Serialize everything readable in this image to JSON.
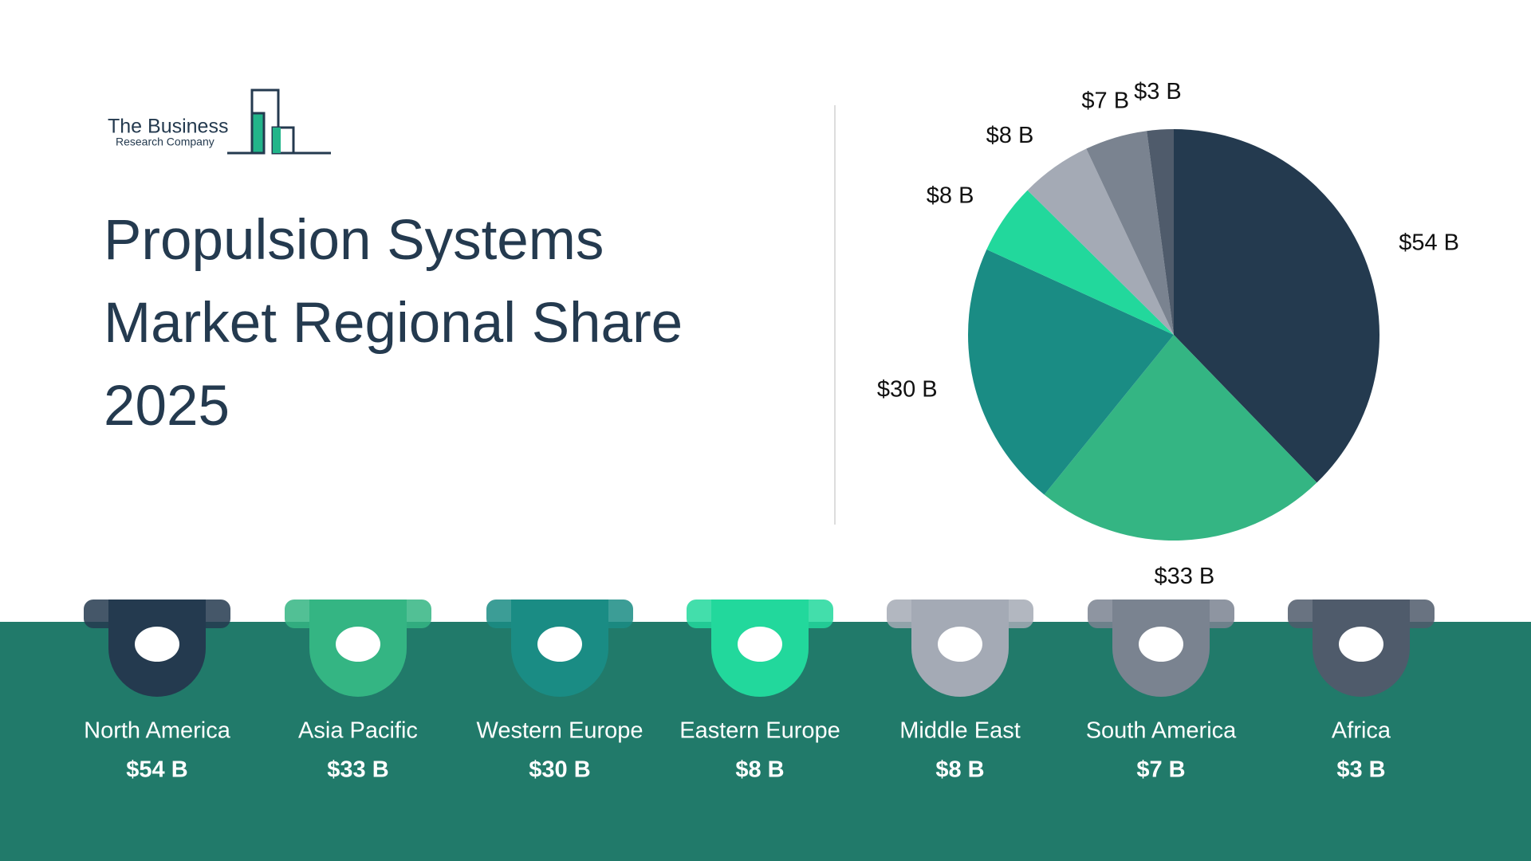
{
  "logo": {
    "line1": "The Business",
    "line2": "Research Company"
  },
  "chart_data": {
    "type": "pie",
    "title": "Propulsion Systems Market Regional Share 2025",
    "categories": [
      "North America",
      "Asia Pacific",
      "Western Europe",
      "Eastern Europe",
      "Middle East",
      "South America",
      "Africa"
    ],
    "values": [
      54,
      33,
      30,
      8,
      8,
      7,
      3
    ],
    "value_labels": [
      "$54 B",
      "$33 B",
      "$30 B",
      "$8 B",
      "$8 B",
      "$7 B",
      "$3 B"
    ],
    "colors": [
      "#243a4f",
      "#34b583",
      "#1a8c84",
      "#22d89c",
      "#a4aab5",
      "#7a8390",
      "#4f5b6b"
    ]
  }
}
